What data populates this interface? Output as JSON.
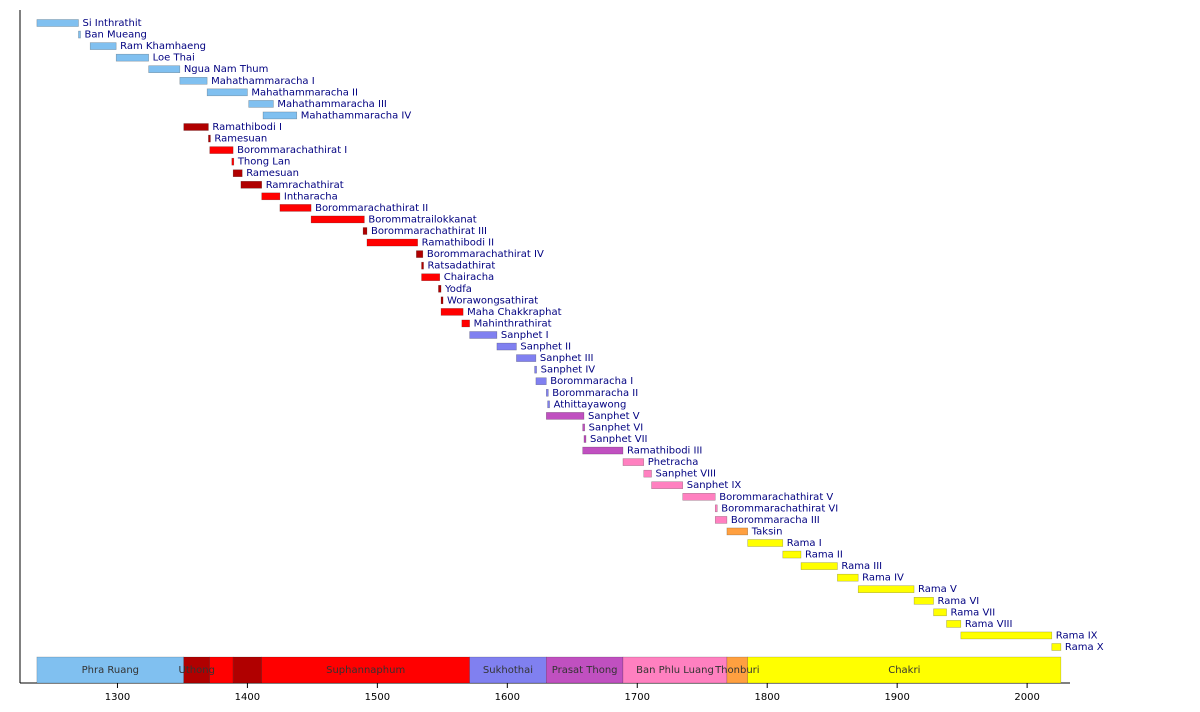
{
  "chart_data": {
    "type": "timeline",
    "categories": [
      "Si Inthrathit",
      "Ban Mueang",
      "Ram Khamhaeng",
      "Loe Thai",
      "Ngua Nam Thum",
      "Mahathammaracha I",
      "Mahathammaracha II",
      "Mahathammaracha III",
      "Mahathammaracha IV",
      "Ramathibodi I",
      "Ramesuan",
      "Borommarachathirat I",
      "Thong Lan",
      "Ramesuan",
      "Ramrachathirat",
      "Intharacha",
      "Borommarachathirat II",
      "Borommatrailokkanat",
      "Borommarachathirat III",
      "Ramathibodi II",
      "Borommarachathirat IV",
      "Ratsadathirat",
      "Chairacha",
      "Yodfa",
      "Worawongsathirat",
      "Maha Chakkraphat",
      "Mahinthrathirat",
      "Sanphet I",
      "Sanphet II",
      "Sanphet III",
      "Sanphet IV",
      "Borommaracha I",
      "Borommaracha II",
      "Athittayawong",
      "Sanphet V",
      "Sanphet VI",
      "Sanphet VII",
      "Ramathibodi III",
      "Phetracha",
      "Sanphet VIII",
      "Sanphet IX",
      "Borommarachathirat V",
      "Borommarachathirat VI",
      "Borommaracha III",
      "Taksin",
      "Rama I",
      "Rama II",
      "Rama III",
      "Rama IV",
      "Rama V",
      "Rama VI",
      "Rama VII",
      "Rama VIII",
      "Rama IX",
      "Rama X"
    ],
    "start": [
      1238,
      1270,
      1279,
      1299,
      1324,
      1348,
      1369,
      1401,
      1412,
      1351,
      1370,
      1371,
      1388,
      1389,
      1395,
      1411,
      1425,
      1449,
      1489,
      1492,
      1530,
      1534,
      1534,
      1547,
      1549,
      1549,
      1565,
      1571,
      1592,
      1607,
      1621,
      1622,
      1630,
      1631,
      1630,
      1658,
      1659,
      1658,
      1689,
      1705,
      1711,
      1735,
      1760,
      1760,
      1769,
      1785,
      1812,
      1826,
      1854,
      1870,
      1913,
      1928,
      1938,
      1949,
      2019
    ],
    "end": [
      1270,
      1271,
      1299,
      1324,
      1348,
      1369,
      1400,
      1420,
      1438,
      1370,
      1371,
      1389,
      1389,
      1396,
      1411,
      1425,
      1449,
      1490,
      1492,
      1531,
      1535,
      1535,
      1548,
      1549,
      1550,
      1566,
      1571,
      1592,
      1607,
      1622,
      1622,
      1630,
      1631,
      1632,
      1659,
      1659,
      1660,
      1689,
      1705,
      1711,
      1735,
      1760,
      1761,
      1769,
      1785,
      1812,
      1826,
      1854,
      1870,
      1913,
      1928,
      1938,
      1949,
      2019,
      2026
    ],
    "colors": [
      "#80c0f0",
      "#80c0f0",
      "#80c0f0",
      "#80c0f0",
      "#80c0f0",
      "#80c0f0",
      "#80c0f0",
      "#80c0f0",
      "#80c0f0",
      "#b00000",
      "#b00000",
      "#ff0000",
      "#ff0000",
      "#b00000",
      "#b00000",
      "#ff0000",
      "#ff0000",
      "#ff0000",
      "#b00000",
      "#ff0000",
      "#b00000",
      "#b00000",
      "#ff0000",
      "#b00000",
      "#b00000",
      "#ff0000",
      "#ff0000",
      "#8080f0",
      "#8080f0",
      "#8080f0",
      "#8080f0",
      "#8080f0",
      "#8080f0",
      "#8080f0",
      "#c050c0",
      "#c050c0",
      "#c050c0",
      "#c050c0",
      "#ff80c0",
      "#ff80c0",
      "#ff80c0",
      "#ff80c0",
      "#ff80c0",
      "#ff80c0",
      "#ffa040",
      "#ffff00",
      "#ffff00",
      "#ffff00",
      "#ffff00",
      "#ffff00",
      "#ffff00",
      "#ffff00",
      "#ffff00",
      "#ffff00",
      "#ffff00"
    ],
    "periods": {
      "names": [
        "Phra Ruang",
        "Uthong",
        null,
        null,
        "Suphannaphum",
        "Sukhothai",
        "Prasat Thong",
        "Ban Phlu Luang",
        "Thonburi",
        "Chakri"
      ],
      "start": [
        1238,
        1351,
        1371,
        1389,
        1411,
        1571,
        1630,
        1689,
        1769,
        1785
      ],
      "end": [
        1351,
        1371,
        1389,
        1411,
        1571,
        1630,
        1689,
        1769,
        1785,
        2026
      ],
      "colors": [
        "#80c0f0",
        "#b00000",
        "#ff0000",
        "#b00000",
        "#ff0000",
        "#8080f0",
        "#c050c0",
        "#ff80c0",
        "#ffa040",
        "#ffff00"
      ]
    },
    "xlim": [
      1225,
      2033
    ],
    "xticks": [
      1300,
      1400,
      1500,
      1600,
      1700,
      1800,
      1900,
      2000
    ]
  }
}
